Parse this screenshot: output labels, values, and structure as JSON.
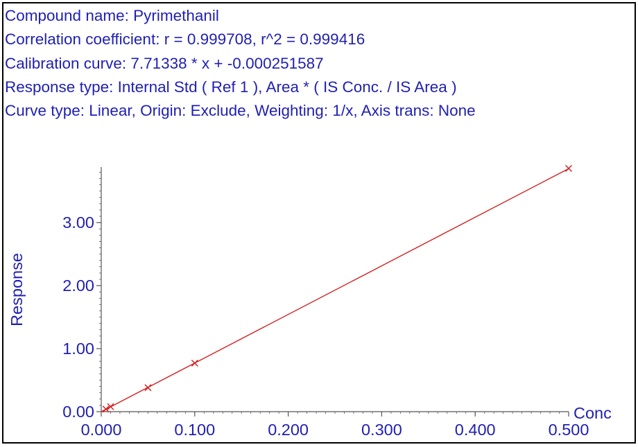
{
  "header": {
    "compound_name": "Compound name: Pyrimethanil",
    "correlation": "Correlation coefficient: r = 0.999708, r^2 = 0.999416",
    "calibration_curve": "Calibration curve: 7.71338 * x + -0.000251587",
    "response_type": "Response type: Internal Std ( Ref 1 ), Area * ( IS Conc. / IS Area )",
    "curve_type": "Curve type: Linear, Origin: Exclude, Weighting: 1/x, Axis trans: None"
  },
  "chart_data": {
    "type": "scatter",
    "xlabel": "Conc",
    "ylabel": "Response",
    "xlim": [
      0.0,
      0.5
    ],
    "ylim": [
      0.0,
      3.86
    ],
    "x_ticks": [
      "0.000",
      "0.100",
      "0.200",
      "0.300",
      "0.400",
      "0.500"
    ],
    "x_tick_values": [
      0.0,
      0.1,
      0.2,
      0.3,
      0.4,
      0.5
    ],
    "y_ticks": [
      "0.00",
      "1.00",
      "2.00",
      "3.00"
    ],
    "y_tick_values": [
      0.0,
      1.0,
      2.0,
      3.0
    ],
    "points": [
      {
        "x": 0.005,
        "y": 0.04
      },
      {
        "x": 0.01,
        "y": 0.08
      },
      {
        "x": 0.05,
        "y": 0.38
      },
      {
        "x": 0.1,
        "y": 0.77
      },
      {
        "x": 0.5,
        "y": 3.86
      }
    ],
    "fit": {
      "slope": 7.71338,
      "intercept": -0.000251587
    },
    "colors": {
      "text": "#1f1fb3",
      "line": "#d42020",
      "marker": "#d42020",
      "axis": "#555555"
    }
  }
}
